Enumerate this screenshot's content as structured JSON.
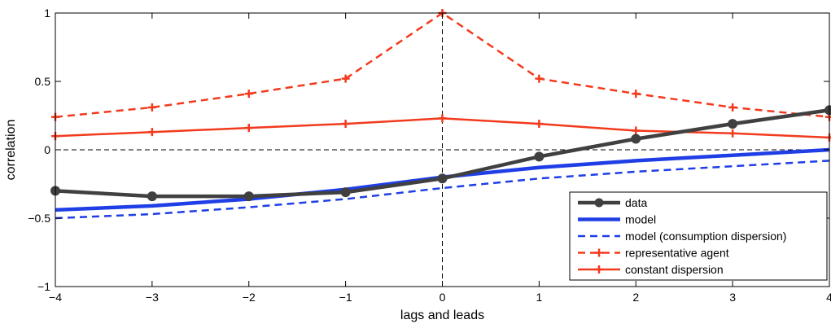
{
  "chart_data": {
    "type": "line",
    "title": "",
    "xlabel": "lags and leads",
    "ylabel": "correlation",
    "xlim": [
      -4,
      4
    ],
    "ylim": [
      -1,
      1
    ],
    "xticks": [
      -4,
      -3,
      -2,
      -1,
      0,
      1,
      2,
      3,
      4
    ],
    "xtick_labels": [
      "−4",
      "−3",
      "−2",
      "−1",
      "0",
      "1",
      "2",
      "3",
      "4"
    ],
    "yticks": [
      -1,
      -0.5,
      0,
      0.5,
      1
    ],
    "ytick_labels": [
      "−1",
      "−0.5",
      "0",
      "0.5",
      "1"
    ],
    "grid": false,
    "legend_position": "bottom-right",
    "x": [
      -4,
      -3,
      -2,
      -1,
      0,
      1,
      2,
      3,
      4
    ],
    "series": [
      {
        "name": "data",
        "values": [
          -0.3,
          -0.34,
          -0.34,
          -0.31,
          -0.21,
          -0.05,
          0.08,
          0.19,
          0.29
        ],
        "color": "#404040",
        "style": "solid",
        "marker": "circle"
      },
      {
        "name": "model",
        "values": [
          -0.44,
          -0.41,
          -0.36,
          -0.29,
          -0.2,
          -0.13,
          -0.08,
          -0.04,
          0.0
        ],
        "color": "#1f3ee6",
        "style": "solid",
        "marker": "none"
      },
      {
        "name": "model (consumption dispersion)",
        "values": [
          -0.5,
          -0.47,
          -0.42,
          -0.36,
          -0.28,
          -0.21,
          -0.16,
          -0.12,
          -0.08
        ],
        "color": "#1f3ee6",
        "style": "dashed",
        "marker": "none"
      },
      {
        "name": "representative agent",
        "values": [
          0.24,
          0.31,
          0.41,
          0.52,
          1.0,
          0.52,
          0.41,
          0.31,
          0.24
        ],
        "color": "#f23a1d",
        "style": "dashed",
        "marker": "plus"
      },
      {
        "name": "constant dispersion",
        "values": [
          0.1,
          0.13,
          0.16,
          0.19,
          0.23,
          0.19,
          0.14,
          0.12,
          0.09
        ],
        "color": "#f23a1d",
        "style": "solid",
        "marker": "plus"
      }
    ]
  }
}
